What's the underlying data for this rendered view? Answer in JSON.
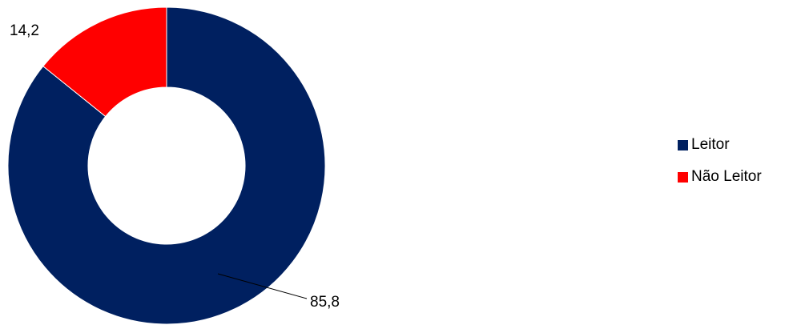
{
  "chart_data": {
    "type": "pie",
    "variant": "donut",
    "categories": [
      "Leitor",
      "Não Leitor"
    ],
    "values": [
      85.8,
      14.2
    ],
    "data_labels": [
      "85,8",
      "14,2"
    ],
    "colors": [
      "#002060",
      "#ff0000"
    ],
    "title": "",
    "legend_position": "right"
  },
  "legend": {
    "items": [
      {
        "label": "Leitor",
        "color": "#002060"
      },
      {
        "label": "Não Leitor",
        "color": "#ff0000"
      }
    ]
  }
}
